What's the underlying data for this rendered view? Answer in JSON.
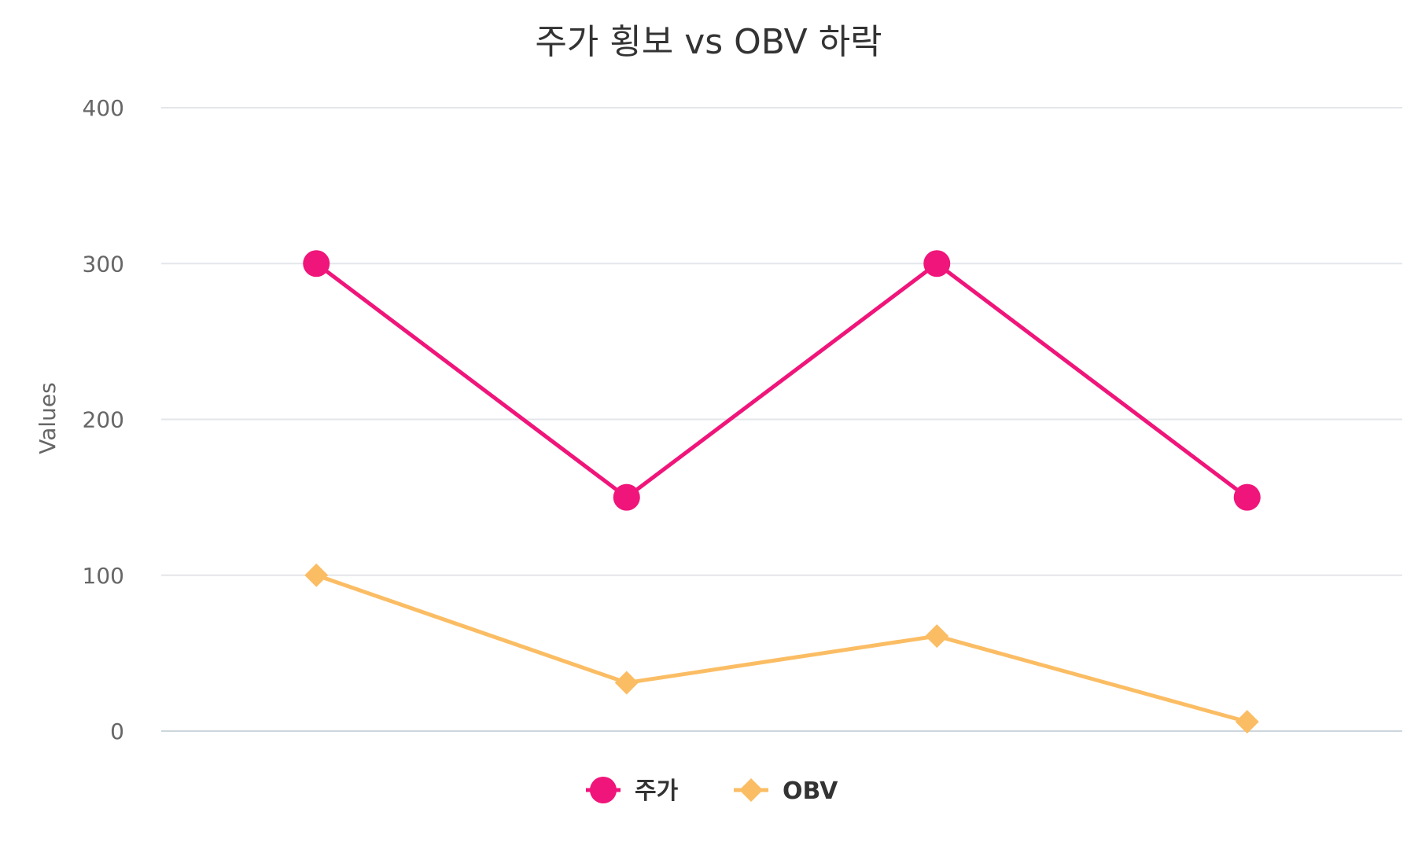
{
  "chart_data": {
    "type": "line",
    "title": "주가 횡보 vs OBV 하락",
    "xlabel": "",
    "ylabel": "Values",
    "ylim": [
      0,
      400
    ],
    "yticks": [
      0,
      100,
      200,
      300,
      400
    ],
    "categories": [
      "",
      "",
      "",
      ""
    ],
    "grid": true,
    "legend_position": "bottom",
    "series": [
      {
        "name": "주가",
        "values": [
          300,
          150,
          300,
          150
        ],
        "color": "#f0157a",
        "marker": "circle"
      },
      {
        "name": "OBV",
        "values": [
          100,
          31,
          61,
          6
        ],
        "color": "#fbbd64",
        "marker": "diamond"
      }
    ]
  }
}
